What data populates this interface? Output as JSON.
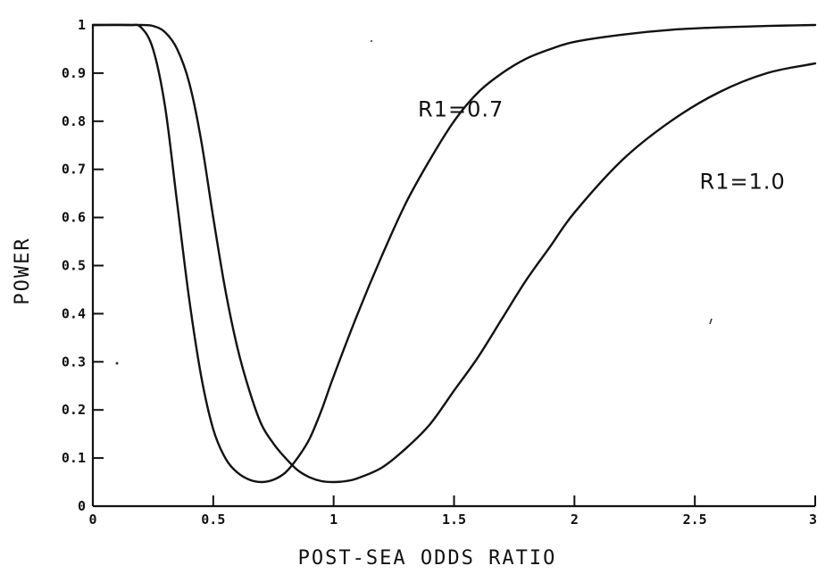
{
  "chart_data": {
    "type": "line",
    "title": "",
    "xlabel": "POST-SEA ODDS RATIO",
    "ylabel": "POWER",
    "xlim": [
      0,
      3
    ],
    "ylim": [
      0,
      1
    ],
    "x_ticks": [
      0,
      0.5,
      1,
      1.5,
      2,
      2.5,
      3
    ],
    "x_tick_labels": [
      "0",
      "0.5",
      "1",
      "1.5",
      "2",
      "2.5",
      "3"
    ],
    "y_ticks": [
      0,
      0.1,
      0.2,
      0.3,
      0.4,
      0.5,
      0.6,
      0.7,
      0.8,
      0.9,
      1
    ],
    "y_tick_labels": [
      "0",
      "0.1",
      "0.2",
      "0.3",
      "0.4",
      "0.5",
      "0.6",
      "0.7",
      "0.8",
      "0.9",
      "1"
    ],
    "grid": false,
    "series": [
      {
        "name": "R1=0.7",
        "x": [
          0,
          0.15,
          0.2,
          0.25,
          0.3,
          0.35,
          0.4,
          0.45,
          0.5,
          0.55,
          0.6,
          0.65,
          0.7,
          0.75,
          0.8,
          0.85,
          0.9,
          0.95,
          1.0,
          1.1,
          1.2,
          1.3,
          1.4,
          1.5,
          1.6,
          1.7,
          1.8,
          1.9,
          2.0,
          2.2,
          2.4,
          2.6,
          2.8,
          3.0
        ],
        "y": [
          1.0,
          1.0,
          0.995,
          0.95,
          0.83,
          0.63,
          0.43,
          0.27,
          0.16,
          0.1,
          0.07,
          0.055,
          0.05,
          0.055,
          0.07,
          0.1,
          0.14,
          0.2,
          0.27,
          0.4,
          0.52,
          0.63,
          0.72,
          0.8,
          0.86,
          0.9,
          0.93,
          0.95,
          0.965,
          0.98,
          0.99,
          0.995,
          0.998,
          1.0
        ]
      },
      {
        "name": "R1=1.0",
        "x": [
          0,
          0.15,
          0.2,
          0.25,
          0.3,
          0.35,
          0.4,
          0.45,
          0.5,
          0.55,
          0.6,
          0.65,
          0.7,
          0.75,
          0.8,
          0.85,
          0.9,
          0.95,
          1.0,
          1.05,
          1.1,
          1.2,
          1.3,
          1.4,
          1.5,
          1.6,
          1.7,
          1.8,
          1.9,
          2.0,
          2.2,
          2.4,
          2.6,
          2.8,
          3.0
        ],
        "y": [
          1.0,
          1.0,
          1.0,
          0.998,
          0.985,
          0.95,
          0.88,
          0.76,
          0.6,
          0.45,
          0.33,
          0.24,
          0.17,
          0.13,
          0.1,
          0.075,
          0.06,
          0.052,
          0.05,
          0.052,
          0.058,
          0.08,
          0.12,
          0.17,
          0.24,
          0.31,
          0.39,
          0.47,
          0.54,
          0.61,
          0.72,
          0.8,
          0.86,
          0.9,
          0.92
        ]
      }
    ],
    "annotations": [
      {
        "text": "R1=0.7",
        "x": 1.35,
        "y": 0.81
      },
      {
        "text": "R1=1.0",
        "x": 2.52,
        "y": 0.66
      }
    ]
  }
}
